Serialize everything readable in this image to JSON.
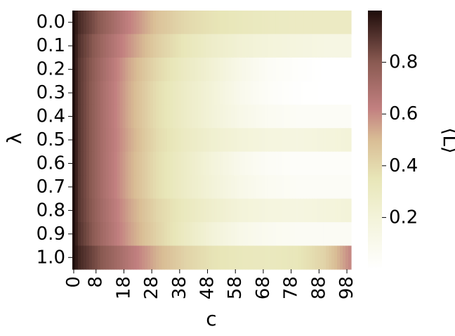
{
  "chart_data": {
    "type": "heatmap",
    "xlabel": "c",
    "ylabel": "λ",
    "colorbar_label": "⟨L⟩",
    "x_range": [
      0,
      99
    ],
    "x_tick_labels": [
      "0",
      "8",
      "18",
      "28",
      "38",
      "48",
      "58",
      "68",
      "78",
      "88",
      "98"
    ],
    "y_tick_labels": [
      "0.0",
      "0.1",
      "0.2",
      "0.3",
      "0.4",
      "0.5",
      "0.6",
      "0.7",
      "0.8",
      "0.9",
      "1.0"
    ],
    "colorbar_ticks": [
      "0.2",
      "0.4",
      "0.6",
      "0.8"
    ],
    "colorbar_range": [
      0.0,
      1.0
    ],
    "colormap": "pink_r",
    "colors": [
      "#ffffff",
      "#e8e8b8",
      "#d7b98c",
      "#c28080",
      "#8a5a52",
      "#1e0c0a"
    ],
    "row_profiles": [
      {
        "lambda": "0.0",
        "c": [
          0,
          2,
          10,
          20,
          30,
          40,
          50,
          60,
          70,
          80,
          90,
          99
        ],
        "L": [
          1.0,
          0.92,
          0.78,
          0.62,
          0.48,
          0.4,
          0.36,
          0.33,
          0.31,
          0.3,
          0.3,
          0.3
        ]
      },
      {
        "lambda": "0.1",
        "c": [
          0,
          2,
          10,
          20,
          30,
          40,
          50,
          60,
          70,
          80,
          90,
          99
        ],
        "L": [
          1.0,
          0.9,
          0.74,
          0.58,
          0.44,
          0.34,
          0.27,
          0.22,
          0.19,
          0.17,
          0.15,
          0.15
        ]
      },
      {
        "lambda": "0.2",
        "c": [
          0,
          2,
          10,
          20,
          30,
          40,
          50,
          60,
          70,
          80,
          90,
          99
        ],
        "L": [
          1.0,
          0.89,
          0.72,
          0.54,
          0.4,
          0.3,
          0.22,
          0.12,
          0.05,
          0.02,
          0.0,
          0.0
        ]
      },
      {
        "lambda": "0.3",
        "c": [
          0,
          2,
          10,
          20,
          30,
          40,
          50,
          60,
          70,
          80,
          90,
          99
        ],
        "L": [
          1.0,
          0.89,
          0.71,
          0.53,
          0.38,
          0.28,
          0.2,
          0.1,
          0.04,
          0.01,
          0.0,
          0.0
        ]
      },
      {
        "lambda": "0.4",
        "c": [
          0,
          2,
          10,
          20,
          30,
          40,
          50,
          60,
          70,
          80,
          90,
          99
        ],
        "L": [
          1.0,
          0.89,
          0.71,
          0.53,
          0.38,
          0.28,
          0.2,
          0.12,
          0.07,
          0.05,
          0.05,
          0.05
        ]
      },
      {
        "lambda": "0.5",
        "c": [
          0,
          2,
          10,
          20,
          30,
          40,
          50,
          60,
          70,
          80,
          90,
          99
        ],
        "L": [
          1.0,
          0.89,
          0.71,
          0.54,
          0.39,
          0.3,
          0.24,
          0.2,
          0.17,
          0.16,
          0.18,
          0.2
        ]
      },
      {
        "lambda": "0.6",
        "c": [
          0,
          2,
          10,
          20,
          30,
          40,
          50,
          60,
          70,
          80,
          90,
          99
        ],
        "L": [
          1.0,
          0.89,
          0.71,
          0.53,
          0.38,
          0.28,
          0.19,
          0.1,
          0.05,
          0.03,
          0.03,
          0.03
        ]
      },
      {
        "lambda": "0.7",
        "c": [
          0,
          2,
          10,
          20,
          30,
          40,
          50,
          60,
          70,
          80,
          90,
          99
        ],
        "L": [
          1.0,
          0.89,
          0.71,
          0.53,
          0.38,
          0.28,
          0.2,
          0.12,
          0.07,
          0.05,
          0.05,
          0.05
        ]
      },
      {
        "lambda": "0.8",
        "c": [
          0,
          2,
          10,
          20,
          30,
          40,
          50,
          60,
          70,
          80,
          90,
          99
        ],
        "L": [
          1.0,
          0.89,
          0.72,
          0.55,
          0.41,
          0.32,
          0.25,
          0.2,
          0.17,
          0.16,
          0.18,
          0.2
        ]
      },
      {
        "lambda": "0.9",
        "c": [
          0,
          2,
          10,
          20,
          30,
          40,
          50,
          60,
          70,
          80,
          90,
          99
        ],
        "L": [
          1.0,
          0.9,
          0.73,
          0.56,
          0.42,
          0.3,
          0.2,
          0.12,
          0.08,
          0.06,
          0.06,
          0.06
        ]
      },
      {
        "lambda": "1.0",
        "c": [
          0,
          2,
          10,
          20,
          30,
          40,
          50,
          60,
          70,
          80,
          90,
          99
        ],
        "L": [
          1.0,
          0.93,
          0.8,
          0.66,
          0.52,
          0.42,
          0.36,
          0.33,
          0.32,
          0.34,
          0.42,
          0.6
        ]
      }
    ]
  }
}
